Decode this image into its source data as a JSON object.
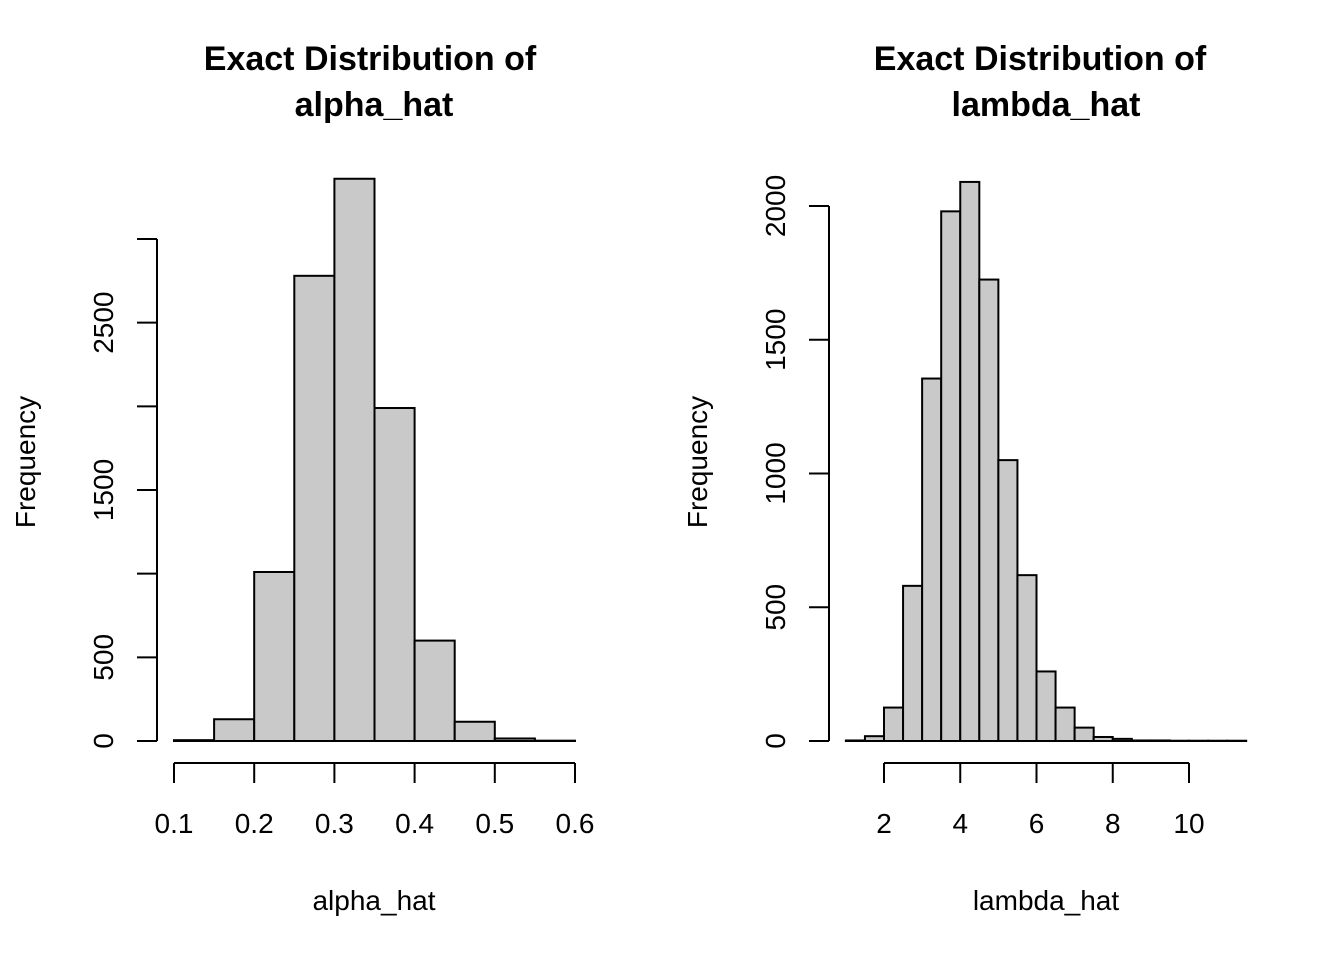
{
  "chart_data": [
    {
      "type": "bar",
      "title": [
        "Exact Distribution of",
        "alpha_hat"
      ],
      "xlabel": "alpha_hat",
      "ylabel": "Frequency",
      "bin_edges": [
        0.1,
        0.15,
        0.2,
        0.25,
        0.3,
        0.35,
        0.4,
        0.45,
        0.5,
        0.55,
        0.6
      ],
      "values": [
        5,
        130,
        1010,
        2780,
        3360,
        1990,
        600,
        115,
        15,
        2
      ],
      "xlim": [
        0.1,
        0.6
      ],
      "ylim": [
        0,
        3000
      ],
      "xticks": [
        0.1,
        0.2,
        0.3,
        0.4,
        0.5,
        0.6
      ],
      "xtick_labels": [
        "0.1",
        "0.2",
        "0.3",
        "0.4",
        "0.5",
        "0.6"
      ],
      "yticks": [
        0,
        500,
        1000,
        1500,
        2000,
        2500,
        3000
      ],
      "ytick_labels": [
        "0",
        "500",
        "",
        "1500",
        "",
        "2500",
        ""
      ],
      "grid": false
    },
    {
      "type": "bar",
      "title": [
        "Exact Distribution of",
        "lambda_hat"
      ],
      "xlabel": "lambda_hat",
      "ylabel": "Frequency",
      "bin_edges": [
        1,
        1.5,
        2,
        2.5,
        3,
        3.5,
        4,
        4.5,
        5,
        5.5,
        6,
        6.5,
        7,
        7.5,
        8,
        8.5,
        9,
        9.5,
        10,
        10.5,
        11,
        11.5
      ],
      "values": [
        2,
        18,
        125,
        580,
        1355,
        1980,
        2090,
        1725,
        1050,
        620,
        260,
        125,
        50,
        15,
        8,
        2,
        2,
        1,
        1,
        1,
        1
      ],
      "xlim": [
        2,
        10
      ],
      "ylim": [
        0,
        2000
      ],
      "xticks": [
        2,
        4,
        6,
        8,
        10
      ],
      "xtick_labels": [
        "2",
        "4",
        "6",
        "8",
        "10"
      ],
      "yticks": [
        0,
        500,
        1000,
        1500,
        2000
      ],
      "ytick_labels": [
        "0",
        "500",
        "1000",
        "1500",
        "2000"
      ],
      "grid": false
    }
  ]
}
